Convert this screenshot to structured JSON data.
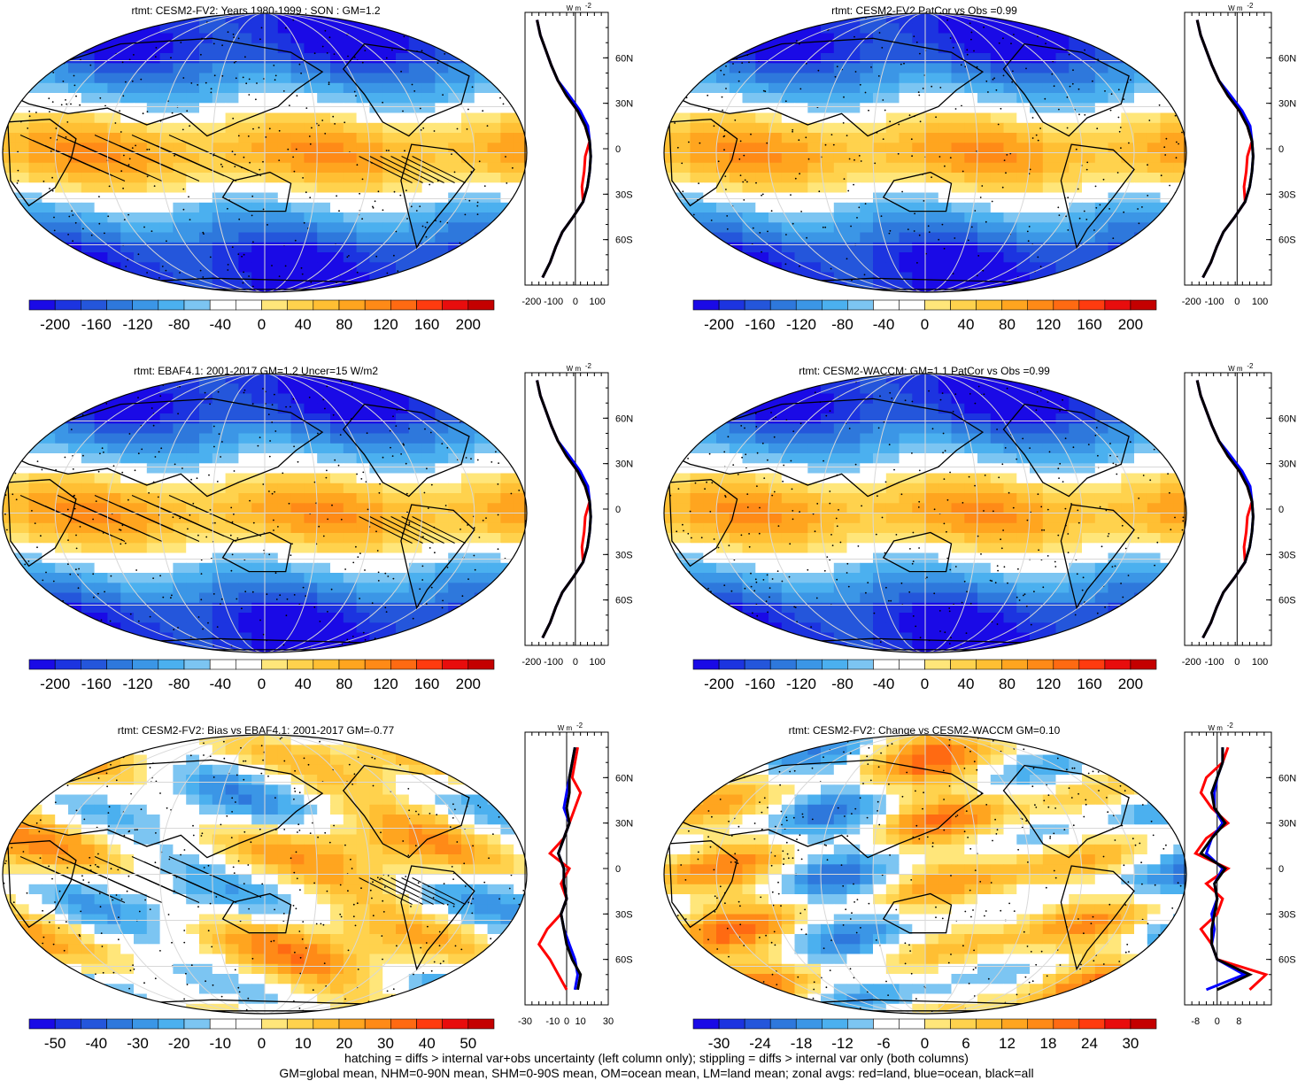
{
  "panels": [
    {
      "title": "rtmt: CESM2-FV2: Years 1980-1999 : SON : GM=1.2",
      "field": "clim",
      "hatch": true,
      "colorbar": {
        "labels": [
          "-200",
          "-160",
          "-120",
          "-80",
          "-40",
          "0",
          "40",
          "80",
          "120",
          "160",
          "200"
        ]
      },
      "zonal": {
        "x_ticks": [
          "-200",
          "-100",
          "0",
          "100"
        ],
        "xlim": [
          -230,
          150
        ]
      }
    },
    {
      "title": "rtmt: CESM2-FV2 PatCor vs Obs =0.99",
      "field": "clim",
      "hatch": false,
      "colorbar": {
        "labels": [
          "-200",
          "-160",
          "-120",
          "-80",
          "-40",
          "0",
          "40",
          "80",
          "120",
          "160",
          "200"
        ]
      },
      "zonal": {
        "x_ticks": [
          "-200",
          "-100",
          "0",
          "100"
        ],
        "xlim": [
          -230,
          150
        ]
      }
    },
    {
      "title": "rtmt: EBAF4.1: 2001-2017 GM=1.2 Uncer=15 W/m2",
      "field": "clim",
      "hatch": true,
      "colorbar": {
        "labels": [
          "-200",
          "-160",
          "-120",
          "-80",
          "-40",
          "0",
          "40",
          "80",
          "120",
          "160",
          "200"
        ]
      },
      "zonal": {
        "x_ticks": [
          "-200",
          "-100",
          "0",
          "100"
        ],
        "xlim": [
          -230,
          150
        ]
      }
    },
    {
      "title": "rtmt: CESM2-WACCM: GM=1.1 PatCor vs Obs =0.99",
      "field": "clim",
      "hatch": false,
      "colorbar": {
        "labels": [
          "-200",
          "-160",
          "-120",
          "-80",
          "-40",
          "0",
          "40",
          "80",
          "120",
          "160",
          "200"
        ]
      },
      "zonal": {
        "x_ticks": [
          "-200",
          "-100",
          "0",
          "100"
        ],
        "xlim": [
          -230,
          150
        ]
      }
    },
    {
      "title": "rtmt: CESM2-FV2: Bias vs EBAF4.1: 2001-2017  GM=-0.77",
      "field": "bias",
      "hatch": true,
      "colorbar": {
        "labels": [
          "-50",
          "-40",
          "-30",
          "-20",
          "-10",
          "0",
          "10",
          "20",
          "30",
          "40",
          "50"
        ]
      },
      "zonal": {
        "x_ticks": [
          "-30",
          "-10",
          "0",
          "10",
          "30"
        ],
        "xlim": [
          -30,
          30
        ]
      }
    },
    {
      "title": "rtmt: CESM2-FV2: Change vs CESM2-WACCM GM=0.10",
      "field": "change",
      "hatch": false,
      "colorbar": {
        "labels": [
          "-30",
          "-24",
          "-18",
          "-12",
          "-6",
          "0",
          "6",
          "12",
          "18",
          "24",
          "30"
        ]
      },
      "zonal": {
        "x_ticks": [
          "-8",
          "0",
          "8"
        ],
        "xlim": [
          -12,
          20
        ]
      }
    }
  ],
  "zonal_units": "W m",
  "zonal_units_exp": "-2",
  "lat_ticks": [
    "60N",
    "30N",
    "0",
    "30S",
    "60S"
  ],
  "colors": {
    "palette": [
      "#1a0ae6",
      "#1c34e0",
      "#2456db",
      "#2e78dc",
      "#3b96e6",
      "#4bb0ef",
      "#7cc5f2",
      "#ffffff",
      "#ffffff",
      "#ffe67a",
      "#ffd24d",
      "#ffbf33",
      "#ffa51f",
      "#ff8a17",
      "#ff6a12",
      "#ff3b0f",
      "#e80d0d",
      "#c40000"
    ],
    "land_curve": "#ff0000",
    "ocean_curve": "#0000ff",
    "all_curve": "#000000"
  },
  "chart_data": [
    {
      "type": "heatmap",
      "title": "rtmt: CESM2-FV2: Years 1980-1999 : SON : GM=1.2",
      "clim": [
        -200,
        200
      ],
      "zonal_mean": {
        "lat": [
          -85,
          -75,
          -65,
          -55,
          -45,
          -35,
          -25,
          -15,
          -5,
          5,
          15,
          25,
          35,
          45,
          55,
          65,
          75,
          85
        ],
        "all": [
          -150,
          -115,
          -90,
          -60,
          -10,
          35,
          55,
          65,
          70,
          65,
          45,
          10,
          -40,
          -80,
          -110,
          -135,
          -160,
          -175
        ]
      }
    },
    {
      "type": "heatmap",
      "title": "rtmt: CESM2-FV2 PatCor vs Obs =0.99",
      "clim": [
        -200,
        200
      ],
      "zonal_mean": {
        "lat": [
          -85,
          -75,
          -65,
          -55,
          -45,
          -35,
          -25,
          -15,
          -5,
          5,
          15,
          25,
          35,
          45,
          55,
          65,
          75,
          85
        ],
        "all": [
          -150,
          -115,
          -90,
          -60,
          -10,
          35,
          55,
          65,
          70,
          65,
          45,
          10,
          -40,
          -80,
          -110,
          -135,
          -160,
          -175
        ]
      }
    },
    {
      "type": "heatmap",
      "title": "rtmt: EBAF4.1: 2001-2017 GM=1.2 Uncer=15 W/m2",
      "clim": [
        -200,
        200
      ],
      "zonal_mean": {
        "lat": [
          -85,
          -75,
          -65,
          -55,
          -45,
          -35,
          -25,
          -15,
          -5,
          5,
          15,
          25,
          35,
          45,
          55,
          65,
          75,
          85
        ],
        "all": [
          -150,
          -115,
          -90,
          -60,
          -10,
          35,
          55,
          65,
          70,
          65,
          45,
          10,
          -40,
          -80,
          -110,
          -135,
          -160,
          -175
        ]
      }
    },
    {
      "type": "heatmap",
      "title": "rtmt: CESM2-WACCM: GM=1.1 PatCor vs Obs =0.99",
      "clim": [
        -200,
        200
      ],
      "zonal_mean": {
        "lat": [
          -85,
          -75,
          -65,
          -55,
          -45,
          -35,
          -25,
          -15,
          -5,
          5,
          15,
          25,
          35,
          45,
          55,
          65,
          75,
          85
        ],
        "all": [
          -150,
          -115,
          -90,
          -60,
          -10,
          35,
          55,
          65,
          70,
          65,
          45,
          10,
          -40,
          -80,
          -110,
          -135,
          -160,
          -175
        ]
      }
    },
    {
      "type": "heatmap",
      "title": "rtmt: CESM2-FV2: Bias vs EBAF4.1: 2001-2017  GM=-0.77",
      "clim": [
        -50,
        50
      ],
      "zonal_mean": {
        "lat": [
          -80,
          -70,
          -60,
          -50,
          -40,
          -30,
          -20,
          -10,
          0,
          10,
          20,
          30,
          40,
          50,
          60,
          70,
          80
        ],
        "land": [
          0,
          -6,
          -12,
          -20,
          -14,
          -4,
          0,
          -4,
          2,
          -12,
          -2,
          2,
          6,
          10,
          4,
          6,
          8
        ],
        "ocean": [
          6,
          8,
          6,
          2,
          -2,
          -4,
          0,
          -2,
          -2,
          -6,
          -2,
          2,
          -2,
          0,
          2,
          4,
          6
        ],
        "all": [
          8,
          10,
          4,
          0,
          -2,
          -4,
          0,
          -2,
          -2,
          -6,
          -2,
          2,
          0,
          2,
          2,
          4,
          6
        ]
      }
    },
    {
      "type": "heatmap",
      "title": "rtmt: CESM2-FV2: Change vs CESM2-WACCM GM=0.10",
      "clim": [
        -30,
        30
      ],
      "zonal_mean": {
        "lat": [
          -80,
          -70,
          -60,
          -50,
          -40,
          -30,
          -20,
          -10,
          0,
          10,
          20,
          30,
          40,
          50,
          60,
          70,
          80
        ],
        "land": [
          12,
          18,
          0,
          -2,
          -6,
          0,
          2,
          -4,
          4,
          -8,
          -4,
          4,
          -2,
          -6,
          -4,
          2,
          4
        ],
        "ocean": [
          -4,
          10,
          0,
          -2,
          -1,
          -2,
          0,
          -1,
          2,
          -4,
          -2,
          2,
          -1,
          -1,
          0,
          2,
          2
        ],
        "all": [
          0,
          12,
          0,
          -2,
          -2,
          -1,
          0,
          -1,
          3,
          -6,
          -2,
          3,
          -1,
          -2,
          0,
          2,
          2
        ]
      }
    }
  ],
  "footer": {
    "line1": "hatching = diffs > internal var+obs uncertainty (left column only); stippling = diffs > internal var only (both columns)",
    "line2": "GM=global mean, NHM=0-90N mean, SHM=0-90S mean, OM=ocean mean, LM=land mean; zonal avgs: red=land, blue=ocean, black=all"
  }
}
